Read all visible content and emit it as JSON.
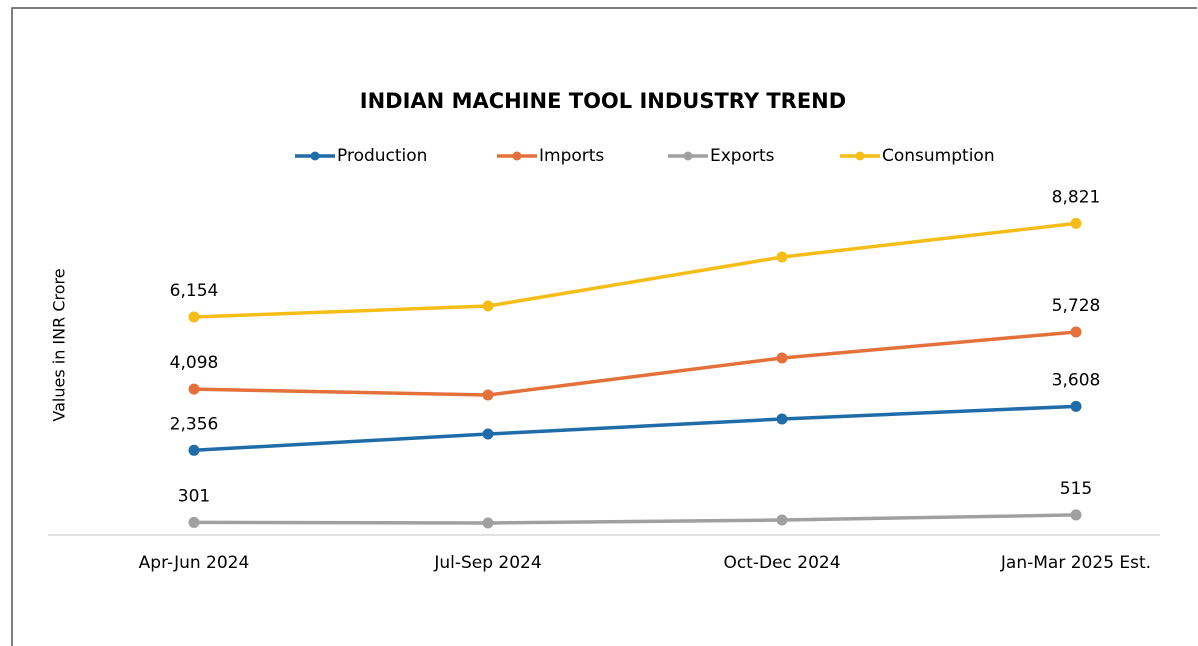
{
  "chart_data": {
    "type": "line",
    "title": "INDIAN MACHINE TOOL INDUSTRY TREND",
    "ylabel": "Values in INR Crore",
    "categories": [
      "Apr-Jun 2024",
      "Jul-Sep 2024",
      "Oct-Dec 2024",
      "Jan-Mar 2025 Est."
    ],
    "ylim": [
      0,
      10000
    ],
    "series": [
      {
        "name": "Production",
        "color": "#1f6ca8",
        "values": [
          2356,
          2820,
          3248,
          3608
        ],
        "value_labels": [
          "2,356",
          null,
          null,
          "3,608"
        ]
      },
      {
        "name": "Imports",
        "color": "#e4703a",
        "values": [
          4098,
          3932,
          4986,
          5728
        ],
        "value_labels": [
          "4,098",
          null,
          null,
          "5,728"
        ]
      },
      {
        "name": "Exports",
        "color": "#a0a0a0",
        "values": [
          301,
          285,
          370,
          515
        ],
        "value_labels": [
          "301",
          null,
          null,
          "515"
        ]
      },
      {
        "name": "Consumption",
        "color": "#f6bd16",
        "values": [
          6154,
          6467,
          7863,
          8821
        ],
        "value_labels": [
          "6,154",
          null,
          null,
          "8,821"
        ]
      }
    ]
  }
}
